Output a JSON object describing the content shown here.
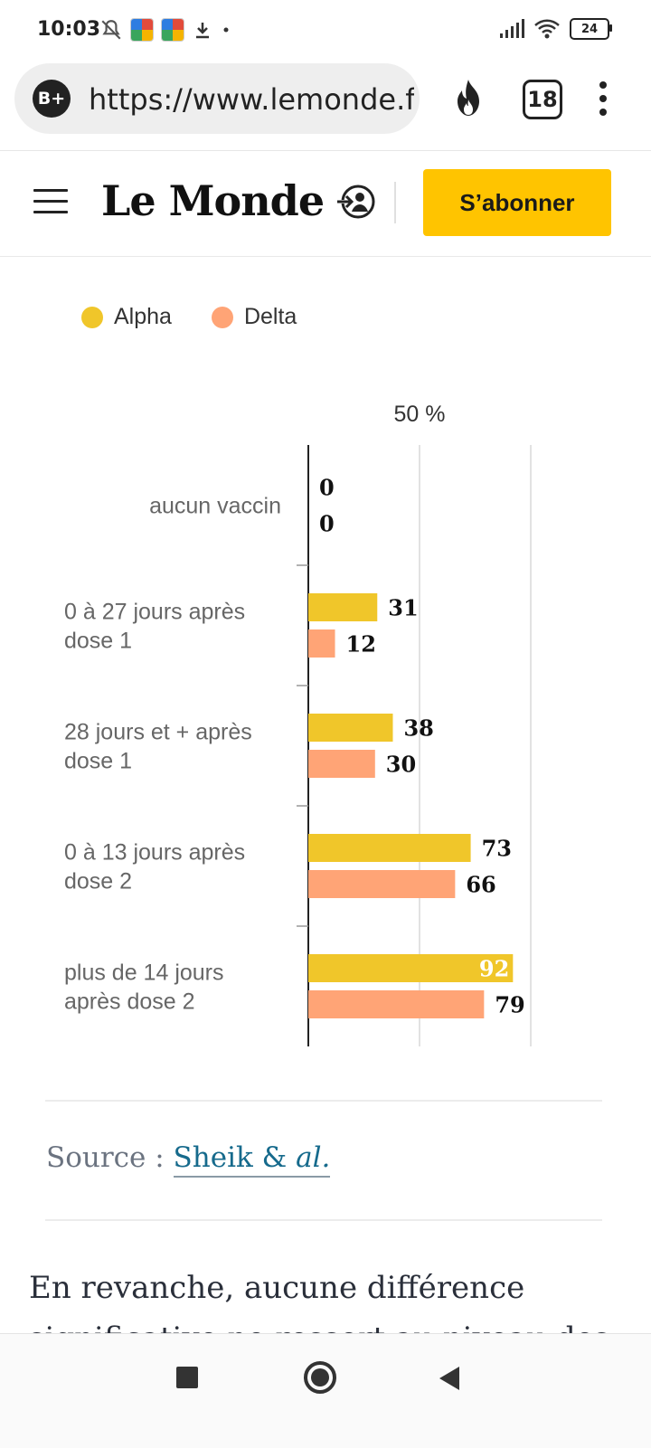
{
  "status_bar": {
    "time": "10:03",
    "battery": "24"
  },
  "browser": {
    "badge": "B+",
    "url": "https://www.lemonde.fr",
    "tab_count": "18"
  },
  "site": {
    "logo": "Le Monde",
    "subscribe_label": "S’abonner"
  },
  "colors": {
    "alpha": "#f0c62a",
    "delta": "#ffa476",
    "subscribe": "#ffc400",
    "link": "#166a8c"
  },
  "chart_data": {
    "type": "bar",
    "orientation": "horizontal",
    "axis_tick_label": "50 %",
    "xlim": [
      0,
      100
    ],
    "categories": [
      [
        "aucun vaccin"
      ],
      [
        "0 à 27 jours après",
        "dose 1"
      ],
      [
        "28 jours et + après",
        "dose 1"
      ],
      [
        "0 à 13 jours après",
        "dose 2"
      ],
      [
        "plus de 14 jours",
        "après dose 2"
      ]
    ],
    "series": [
      {
        "name": "Alpha",
        "color": "#f0c62a",
        "values": [
          0,
          31,
          38,
          73,
          92
        ]
      },
      {
        "name": "Delta",
        "color": "#ffa476",
        "values": [
          0,
          12,
          30,
          66,
          79
        ]
      }
    ]
  },
  "source": {
    "label": "Source : ",
    "link_text": "Sheik & ",
    "link_italic": "al."
  },
  "article": {
    "text": "En revanche, aucune différence significative ne ressort au niveau des"
  }
}
